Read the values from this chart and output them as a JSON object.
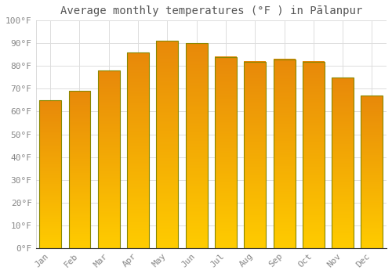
{
  "title": "Average monthly temperatures (°F ) in Pālanpur",
  "months": [
    "Jan",
    "Feb",
    "Mar",
    "Apr",
    "May",
    "Jun",
    "Jul",
    "Aug",
    "Sep",
    "Oct",
    "Nov",
    "Dec"
  ],
  "values": [
    65,
    69,
    78,
    86,
    91,
    90,
    84,
    82,
    83,
    82,
    75,
    67
  ],
  "bar_color_top": "#E8890A",
  "bar_color_bottom": "#FFCC00",
  "bar_edge_color": "#888800",
  "background_color": "#ffffff",
  "grid_color": "#dddddd",
  "yticks": [
    0,
    10,
    20,
    30,
    40,
    50,
    60,
    70,
    80,
    90,
    100
  ],
  "ylim": [
    0,
    100
  ],
  "title_fontsize": 10,
  "tick_fontsize": 8,
  "font_family": "monospace"
}
